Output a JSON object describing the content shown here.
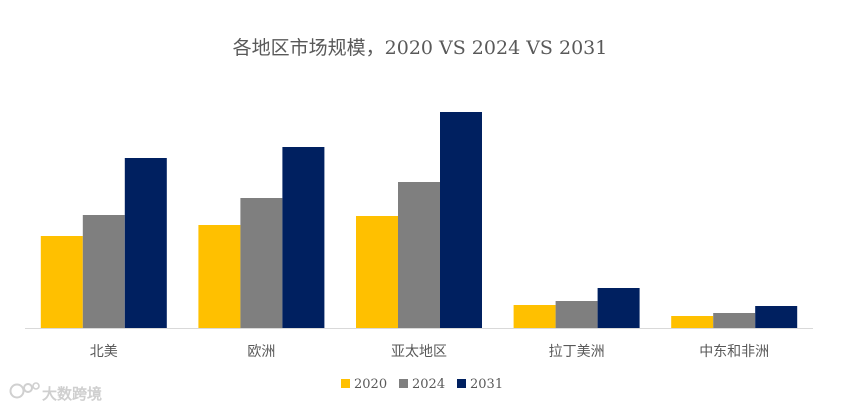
{
  "chart_data": {
    "type": "bar",
    "title": "各地区市场规模，2020 VS 2024 VS 2031",
    "categories": [
      "北美",
      "欧洲",
      "亚太地区",
      "拉丁美洲",
      "中东和非洲"
    ],
    "series": [
      {
        "name": "2020",
        "color": "#FFC000",
        "values": [
          92,
          103,
          112,
          23,
          12
        ]
      },
      {
        "name": "2024",
        "color": "#7F7F7F",
        "values": [
          113,
          130,
          146,
          27,
          15
        ]
      },
      {
        "name": "2031",
        "color": "#002060",
        "values": [
          170,
          181,
          216,
          40,
          22
        ]
      }
    ],
    "ylim": [
      0,
      240
    ],
    "y_axis_visible": false,
    "grid": false,
    "legend_position": "bottom"
  },
  "watermark": {
    "text": "大数跨境",
    "icon": "brand-logo-icon"
  }
}
